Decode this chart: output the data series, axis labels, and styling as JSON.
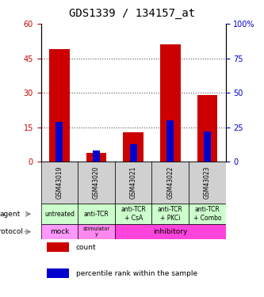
{
  "title": "GDS1339 / 134157_at",
  "samples": [
    "GSM43019",
    "GSM43020",
    "GSM43021",
    "GSM43022",
    "GSM43023"
  ],
  "count_values": [
    49,
    4,
    13,
    51,
    29
  ],
  "percentile_values": [
    29,
    8,
    13,
    30,
    22
  ],
  "left_axis_ticks": [
    0,
    15,
    30,
    45,
    60
  ],
  "right_axis_ticks": [
    0,
    25,
    50,
    75,
    100
  ],
  "left_color": "#cc0000",
  "right_color": "#0000cc",
  "agent_labels": [
    "untreated",
    "anti-TCR",
    "anti-TCR\n+ CsA",
    "anti-TCR\n+ PKCi",
    "anti-TCR\n+ Combo"
  ],
  "agent_bg": "#ccffcc",
  "sample_bg": "#d0d0d0",
  "protocol_bg_mock": "#ff99ff",
  "protocol_bg_stimulatory": "#ff88ee",
  "protocol_bg_inhibitory": "#ff44dd",
  "legend_count_color": "#cc0000",
  "legend_percentile_color": "#0000cc",
  "dotted_line_color": "#555555",
  "title_fontsize": 10,
  "tick_fontsize": 7,
  "sample_fontsize": 5.5,
  "agent_fontsize": 5.5,
  "protocol_fontsize": 6.5,
  "legend_fontsize": 6.5,
  "side_label_fontsize": 6.5
}
